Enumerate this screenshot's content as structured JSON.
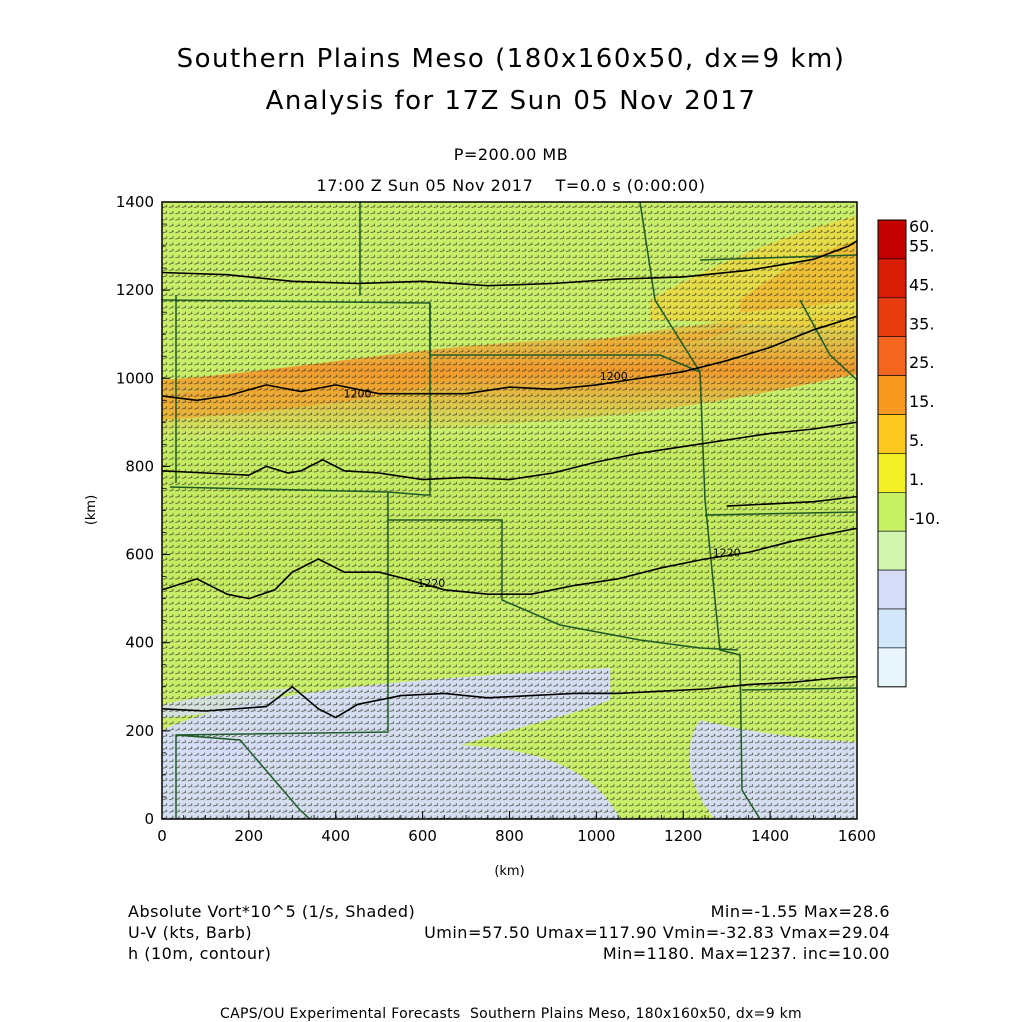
{
  "header": {
    "title_line1": "Southern Plains Meso (180x160x50, dx=9 km)",
    "title_line2": "Analysis for 17Z Sun 05 Nov 2017",
    "level": "P=200.00 MB",
    "time": "17:00 Z Sun 05 Nov 2017    T=0.0 s (0:00:00)"
  },
  "chart_data": {
    "type": "heatmap",
    "xlabel": "(km)",
    "ylabel": "(km)",
    "xlim": [
      0,
      1600
    ],
    "ylim": [
      0,
      1400
    ],
    "x_ticks": [
      "0",
      "200",
      "400",
      "600",
      "800",
      "1000",
      "1200",
      "1400",
      "1600"
    ],
    "y_ticks": [
      "0",
      "200",
      "400",
      "600",
      "800",
      "1000",
      "1200",
      "1400"
    ],
    "colorbar": {
      "labels": [
        "60.",
        "55.",
        "45.",
        "35.",
        "25.",
        "15.",
        "5.",
        "1.",
        "-10."
      ],
      "colors": [
        "#c40000",
        "#d81e06",
        "#e83c10",
        "#f5661e",
        "#f99a20",
        "#fcc920",
        "#f4f028",
        "#c8f064",
        "#d2f6b0",
        "#d6dcf8",
        "#d2e8fa",
        "#e8f6fc"
      ]
    },
    "contours": [
      {
        "label": "1200",
        "points": [
          [
            0,
            960
          ],
          [
            80,
            950
          ],
          [
            150,
            960
          ],
          [
            240,
            985
          ],
          [
            320,
            970
          ],
          [
            400,
            985
          ],
          [
            500,
            965
          ],
          [
            600,
            965
          ],
          [
            700,
            965
          ],
          [
            800,
            980
          ],
          [
            900,
            975
          ],
          [
            1000,
            985
          ],
          [
            1100,
            1000
          ],
          [
            1200,
            1015
          ],
          [
            1300,
            1040
          ],
          [
            1400,
            1070
          ],
          [
            1500,
            1110
          ],
          [
            1630,
            1150
          ]
        ]
      },
      {
        "label": "",
        "points": [
          [
            0,
            1240
          ],
          [
            150,
            1235
          ],
          [
            300,
            1220
          ],
          [
            450,
            1215
          ],
          [
            600,
            1220
          ],
          [
            750,
            1210
          ],
          [
            900,
            1215
          ],
          [
            1050,
            1225
          ],
          [
            1200,
            1230
          ],
          [
            1350,
            1245
          ],
          [
            1500,
            1270
          ],
          [
            1580,
            1300
          ],
          [
            1630,
            1330
          ]
        ]
      },
      {
        "label": "",
        "points": [
          [
            0,
            790
          ],
          [
            100,
            785
          ],
          [
            200,
            780
          ],
          [
            240,
            800
          ],
          [
            290,
            785
          ],
          [
            320,
            790
          ],
          [
            370,
            815
          ],
          [
            420,
            790
          ],
          [
            500,
            785
          ],
          [
            600,
            770
          ],
          [
            700,
            775
          ],
          [
            800,
            770
          ],
          [
            900,
            785
          ],
          [
            1000,
            810
          ],
          [
            1100,
            830
          ],
          [
            1200,
            845
          ],
          [
            1300,
            860
          ],
          [
            1400,
            875
          ],
          [
            1500,
            885
          ],
          [
            1630,
            905
          ]
        ]
      },
      {
        "label": "1220",
        "points": [
          [
            0,
            520
          ],
          [
            80,
            545
          ],
          [
            150,
            510
          ],
          [
            200,
            500
          ],
          [
            260,
            520
          ],
          [
            300,
            560
          ],
          [
            360,
            590
          ],
          [
            420,
            560
          ],
          [
            500,
            560
          ],
          [
            560,
            545
          ],
          [
            650,
            520
          ],
          [
            750,
            510
          ],
          [
            850,
            510
          ],
          [
            950,
            530
          ],
          [
            1050,
            545
          ],
          [
            1150,
            570
          ],
          [
            1250,
            590
          ],
          [
            1350,
            605
          ],
          [
            1450,
            630
          ],
          [
            1550,
            650
          ],
          [
            1630,
            665
          ]
        ]
      },
      {
        "label": "",
        "points": [
          [
            0,
            250
          ],
          [
            100,
            245
          ],
          [
            240,
            255
          ],
          [
            300,
            300
          ],
          [
            360,
            250
          ],
          [
            400,
            230
          ],
          [
            450,
            260
          ],
          [
            550,
            280
          ],
          [
            650,
            285
          ],
          [
            750,
            275
          ],
          [
            850,
            280
          ],
          [
            950,
            285
          ],
          [
            1050,
            285
          ],
          [
            1150,
            290
          ],
          [
            1250,
            295
          ],
          [
            1350,
            305
          ],
          [
            1450,
            310
          ],
          [
            1550,
            320
          ],
          [
            1630,
            325
          ]
        ]
      },
      {
        "label": "",
        "points": [
          [
            1300,
            710
          ],
          [
            1400,
            715
          ],
          [
            1500,
            720
          ],
          [
            1630,
            735
          ]
        ]
      }
    ],
    "contour_label_positions": [
      [
        1040,
        1005
      ],
      [
        450,
        965
      ],
      [
        1300,
        605
      ],
      [
        620,
        535
      ]
    ],
    "field_min": "-1.55",
    "field_max": "28.6"
  },
  "footer": {
    "left": [
      "Absolute Vort*10^5 (1/s, Shaded)",
      "U-V (kts, Barb)",
      "h (10m, contour)"
    ],
    "right": [
      "Min=-1.55 Max=28.6",
      "Umin=57.50 Umax=117.90 Vmin=-32.83 Vmax=29.04",
      "Min=1180. Max=1237. inc=10.00"
    ],
    "credit": "CAPS/OU Experimental Forecasts  Southern Plains Meso, 180x160x50, dx=9 km"
  }
}
